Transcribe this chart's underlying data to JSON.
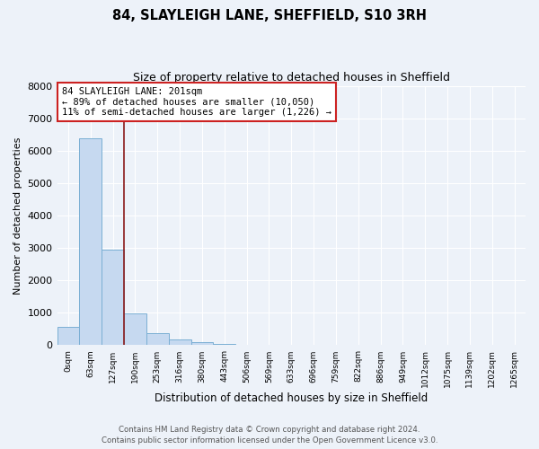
{
  "title": "84, SLAYLEIGH LANE, SHEFFIELD, S10 3RH",
  "subtitle": "Size of property relative to detached houses in Sheffield",
  "xlabel": "Distribution of detached houses by size in Sheffield",
  "ylabel": "Number of detached properties",
  "bar_labels": [
    "0sqm",
    "63sqm",
    "127sqm",
    "190sqm",
    "253sqm",
    "316sqm",
    "380sqm",
    "443sqm",
    "506sqm",
    "569sqm",
    "633sqm",
    "696sqm",
    "759sqm",
    "822sqm",
    "886sqm",
    "949sqm",
    "1012sqm",
    "1075sqm",
    "1139sqm",
    "1202sqm",
    "1265sqm"
  ],
  "bar_heights": [
    560,
    6380,
    2940,
    990,
    380,
    190,
    95,
    50,
    0,
    0,
    0,
    0,
    0,
    0,
    0,
    0,
    0,
    0,
    0,
    0,
    0
  ],
  "bar_color": "#c6d9f0",
  "bar_edge_color": "#7bafd4",
  "property_line_x": 3.0,
  "property_line_color": "#8b1a1a",
  "annotation_line1": "84 SLAYLEIGH LANE: 201sqm",
  "annotation_line2": "← 89% of detached houses are smaller (10,050)",
  "annotation_line3": "11% of semi-detached houses are larger (1,226) →",
  "annotation_box_color": "#ffffff",
  "annotation_box_edgecolor": "#cc2222",
  "ylim": [
    0,
    8000
  ],
  "yticks": [
    0,
    1000,
    2000,
    3000,
    4000,
    5000,
    6000,
    7000,
    8000
  ],
  "footer_line1": "Contains HM Land Registry data © Crown copyright and database right 2024.",
  "footer_line2": "Contains public sector information licensed under the Open Government Licence v3.0.",
  "bg_color": "#edf2f9",
  "plot_bg_color": "#edf2f9",
  "grid_color": "#ffffff"
}
